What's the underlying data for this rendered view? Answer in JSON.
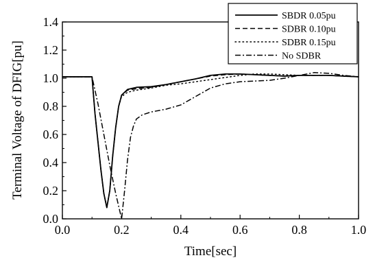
{
  "chart_data": {
    "type": "line",
    "title": "",
    "xlabel": "Time[sec]",
    "ylabel": "Terminal Voltage of DFIG[pu]",
    "xlim": [
      0.0,
      1.0
    ],
    "ylim": [
      0.0,
      1.4
    ],
    "x_ticks": [
      "0.0",
      "0.2",
      "0.4",
      "0.6",
      "0.8",
      "1.0"
    ],
    "y_ticks": [
      "0.0",
      "0.2",
      "0.4",
      "0.6",
      "0.8",
      "1.0",
      "1.2",
      "1.4"
    ],
    "grid": false,
    "legend_position": "top-right",
    "series": [
      {
        "name": "SBDR 0.05pu",
        "style": "solid",
        "x": [
          0.0,
          0.1,
          0.11,
          0.12,
          0.13,
          0.14,
          0.15,
          0.16,
          0.17,
          0.18,
          0.19,
          0.2,
          0.22,
          0.25,
          0.3,
          0.35,
          0.4,
          0.45,
          0.5,
          0.55,
          0.6,
          0.65,
          0.7,
          0.75,
          0.8,
          0.85,
          0.9,
          0.95,
          1.0
        ],
        "y": [
          1.01,
          1.01,
          0.75,
          0.55,
          0.35,
          0.18,
          0.08,
          0.2,
          0.45,
          0.65,
          0.8,
          0.88,
          0.92,
          0.935,
          0.94,
          0.955,
          0.975,
          0.995,
          1.02,
          1.03,
          1.03,
          1.025,
          1.02,
          1.015,
          1.02,
          1.02,
          1.02,
          1.015,
          1.01
        ]
      },
      {
        "name": "SDBR 0.10pu",
        "style": "dashed",
        "x": [
          0.0,
          0.1,
          0.11,
          0.12,
          0.13,
          0.14,
          0.15,
          0.16,
          0.17,
          0.18,
          0.19,
          0.2,
          0.22,
          0.25,
          0.3,
          0.35,
          0.4,
          0.45,
          0.5,
          0.55,
          0.6,
          0.65,
          0.7,
          0.75,
          0.8,
          0.85,
          0.9,
          0.95,
          1.0
        ],
        "y": [
          1.01,
          1.01,
          0.75,
          0.55,
          0.35,
          0.18,
          0.08,
          0.2,
          0.45,
          0.65,
          0.8,
          0.88,
          0.915,
          0.925,
          0.935,
          0.955,
          0.975,
          0.995,
          1.015,
          1.025,
          1.03,
          1.025,
          1.02,
          1.015,
          1.02,
          1.02,
          1.02,
          1.015,
          1.01
        ]
      },
      {
        "name": "SDBR 0.15pu",
        "style": "dotted",
        "x": [
          0.0,
          0.1,
          0.11,
          0.12,
          0.13,
          0.14,
          0.15,
          0.16,
          0.17,
          0.18,
          0.19,
          0.2,
          0.22,
          0.25,
          0.3,
          0.35,
          0.4,
          0.45,
          0.5,
          0.55,
          0.6,
          0.65,
          0.7,
          0.75,
          0.8,
          0.85,
          0.9,
          0.95,
          1.0
        ],
        "y": [
          1.01,
          1.01,
          0.75,
          0.55,
          0.35,
          0.18,
          0.08,
          0.2,
          0.45,
          0.65,
          0.8,
          0.87,
          0.9,
          0.915,
          0.93,
          0.95,
          0.96,
          0.975,
          0.99,
          1.005,
          1.02,
          1.03,
          1.03,
          1.025,
          1.02,
          1.02,
          1.02,
          1.015,
          1.01
        ]
      },
      {
        "name": "No SDBR",
        "style": "dashdot",
        "x": [
          0.0,
          0.1,
          0.12,
          0.14,
          0.16,
          0.18,
          0.2,
          0.21,
          0.22,
          0.23,
          0.24,
          0.25,
          0.27,
          0.3,
          0.35,
          0.4,
          0.45,
          0.5,
          0.55,
          0.6,
          0.65,
          0.7,
          0.75,
          0.8,
          0.85,
          0.9,
          0.95,
          1.0
        ],
        "y": [
          1.01,
          1.01,
          0.82,
          0.6,
          0.38,
          0.18,
          0.0,
          0.2,
          0.42,
          0.58,
          0.66,
          0.71,
          0.74,
          0.76,
          0.78,
          0.81,
          0.87,
          0.93,
          0.96,
          0.975,
          0.98,
          0.985,
          1.0,
          1.02,
          1.04,
          1.035,
          1.02,
          1.01
        ]
      }
    ]
  }
}
